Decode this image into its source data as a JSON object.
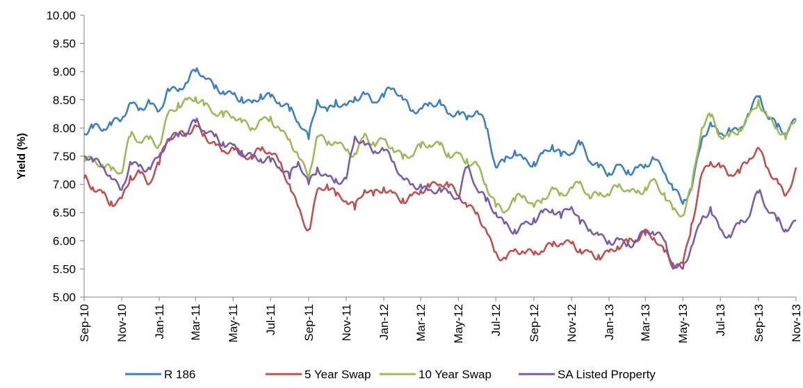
{
  "chart_data": {
    "type": "line",
    "title": "",
    "xlabel": "",
    "ylabel": "Yield (%)",
    "ylim": [
      5.0,
      10.0
    ],
    "yticks": [
      "5.00",
      "5.50",
      "6.00",
      "6.50",
      "7.00",
      "7.50",
      "8.00",
      "8.50",
      "9.00",
      "9.50",
      "10.00"
    ],
    "xticks": [
      "Sep-10",
      "Nov-10",
      "Jan-11",
      "Mar-11",
      "May-11",
      "Jul-11",
      "Sep-11",
      "Nov-11",
      "Jan-12",
      "Mar-12",
      "May-12",
      "Jul-12",
      "Sep-12",
      "Nov-12",
      "Jan-13",
      "Mar-13",
      "May-13",
      "Jul-13",
      "Sep-13",
      "Nov-13"
    ],
    "grid": false,
    "legend_position": "bottom",
    "series": [
      {
        "name": "R 186",
        "color": "#3E7FC1",
        "x": [
          "2010-09-01",
          "2010-09-15",
          "2010-10-01",
          "2010-10-15",
          "2010-11-01",
          "2010-11-15",
          "2010-12-01",
          "2010-12-15",
          "2011-01-01",
          "2011-01-15",
          "2011-02-01",
          "2011-02-15",
          "2011-03-01",
          "2011-03-15",
          "2011-04-01",
          "2011-04-15",
          "2011-05-01",
          "2011-05-15",
          "2011-06-01",
          "2011-06-15",
          "2011-07-01",
          "2011-07-15",
          "2011-08-01",
          "2011-08-15",
          "2011-09-01",
          "2011-09-15",
          "2011-10-01",
          "2011-10-15",
          "2011-11-01",
          "2011-11-15",
          "2011-12-01",
          "2011-12-15",
          "2012-01-01",
          "2012-01-15",
          "2012-02-01",
          "2012-02-15",
          "2012-03-01",
          "2012-03-15",
          "2012-04-01",
          "2012-04-15",
          "2012-05-01",
          "2012-05-15",
          "2012-06-01",
          "2012-06-15",
          "2012-07-01",
          "2012-07-15",
          "2012-08-01",
          "2012-08-15",
          "2012-09-01",
          "2012-09-15",
          "2012-10-01",
          "2012-10-15",
          "2012-11-01",
          "2012-11-15",
          "2012-12-01",
          "2012-12-15",
          "2013-01-01",
          "2013-01-15",
          "2013-02-01",
          "2013-02-15",
          "2013-03-01",
          "2013-03-15",
          "2013-04-01",
          "2013-04-15",
          "2013-05-01",
          "2013-05-15",
          "2013-06-01",
          "2013-06-15",
          "2013-07-01",
          "2013-07-15",
          "2013-08-01",
          "2013-08-15",
          "2013-09-01",
          "2013-09-15",
          "2013-10-01",
          "2013-10-15",
          "2013-11-01"
        ],
        "values": [
          7.9,
          8.0,
          7.95,
          8.05,
          8.15,
          8.45,
          8.35,
          8.5,
          8.3,
          8.7,
          8.65,
          8.8,
          9.0,
          8.9,
          8.7,
          8.65,
          8.6,
          8.55,
          8.45,
          8.6,
          8.55,
          8.45,
          8.3,
          8.1,
          7.8,
          8.5,
          8.3,
          8.5,
          8.4,
          8.55,
          8.6,
          8.45,
          8.55,
          8.7,
          8.5,
          8.3,
          8.35,
          8.45,
          8.5,
          8.25,
          8.3,
          8.15,
          8.3,
          8.0,
          7.3,
          7.4,
          7.6,
          7.45,
          7.4,
          7.55,
          7.7,
          7.5,
          7.55,
          7.7,
          7.4,
          7.3,
          7.2,
          7.35,
          7.25,
          7.3,
          7.35,
          7.45,
          7.2,
          6.9,
          6.65,
          6.9,
          7.8,
          8.1,
          7.9,
          8.0,
          7.95,
          8.25,
          8.55,
          8.2,
          8.0,
          7.9,
          8.15
        ]
      },
      {
        "name": "5 Year Swap",
        "color": "#C0504D",
        "x": [
          "2010-09-01",
          "2010-09-15",
          "2010-10-01",
          "2010-10-15",
          "2010-11-01",
          "2010-11-15",
          "2010-12-01",
          "2010-12-15",
          "2011-01-01",
          "2011-01-15",
          "2011-02-01",
          "2011-02-15",
          "2011-03-01",
          "2011-03-15",
          "2011-04-01",
          "2011-04-15",
          "2011-05-01",
          "2011-05-15",
          "2011-06-01",
          "2011-06-15",
          "2011-07-01",
          "2011-07-15",
          "2011-08-01",
          "2011-08-15",
          "2011-09-01",
          "2011-09-15",
          "2011-10-01",
          "2011-10-15",
          "2011-11-01",
          "2011-11-15",
          "2011-12-01",
          "2011-12-15",
          "2012-01-01",
          "2012-01-15",
          "2012-02-01",
          "2012-02-15",
          "2012-03-01",
          "2012-03-15",
          "2012-04-01",
          "2012-04-15",
          "2012-05-01",
          "2012-05-15",
          "2012-06-01",
          "2012-06-15",
          "2012-07-01",
          "2012-07-15",
          "2012-08-01",
          "2012-08-15",
          "2012-09-01",
          "2012-09-15",
          "2012-10-01",
          "2012-10-15",
          "2012-11-01",
          "2012-11-15",
          "2012-12-01",
          "2012-12-15",
          "2013-01-01",
          "2013-01-15",
          "2013-02-01",
          "2013-02-15",
          "2013-03-01",
          "2013-03-15",
          "2013-04-01",
          "2013-04-15",
          "2013-05-01",
          "2013-05-15",
          "2013-06-01",
          "2013-06-15",
          "2013-07-01",
          "2013-07-15",
          "2013-08-01",
          "2013-08-15",
          "2013-09-01",
          "2013-09-15",
          "2013-10-01",
          "2013-10-15",
          "2013-11-01"
        ],
        "values": [
          7.1,
          6.95,
          6.85,
          6.7,
          6.75,
          7.15,
          7.2,
          7.0,
          7.35,
          7.8,
          7.85,
          7.9,
          8.05,
          7.9,
          7.75,
          7.6,
          7.65,
          7.5,
          7.45,
          7.6,
          7.55,
          7.4,
          7.0,
          6.6,
          6.2,
          6.9,
          7.0,
          6.8,
          6.7,
          6.55,
          6.9,
          6.8,
          6.95,
          6.85,
          6.75,
          6.8,
          6.9,
          6.95,
          7.0,
          6.95,
          6.8,
          6.6,
          6.5,
          6.2,
          5.8,
          5.7,
          5.85,
          5.8,
          5.75,
          5.8,
          5.9,
          5.95,
          5.95,
          5.85,
          5.8,
          5.75,
          5.8,
          5.9,
          5.95,
          6.0,
          6.1,
          6.05,
          5.8,
          5.6,
          5.6,
          6.3,
          7.2,
          7.4,
          7.3,
          7.15,
          7.2,
          7.4,
          7.65,
          7.3,
          7.1,
          6.8,
          7.3
        ]
      },
      {
        "name": "10 Year Swap",
        "color": "#9BBB59",
        "x": [
          "2010-09-01",
          "2010-09-15",
          "2010-10-01",
          "2010-10-15",
          "2010-11-01",
          "2010-11-15",
          "2010-12-01",
          "2010-12-15",
          "2011-01-01",
          "2011-01-15",
          "2011-02-01",
          "2011-02-15",
          "2011-03-01",
          "2011-03-15",
          "2011-04-01",
          "2011-04-15",
          "2011-05-01",
          "2011-05-15",
          "2011-06-01",
          "2011-06-15",
          "2011-07-01",
          "2011-07-15",
          "2011-08-01",
          "2011-08-15",
          "2011-09-01",
          "2011-09-15",
          "2011-10-01",
          "2011-10-15",
          "2011-11-01",
          "2011-11-15",
          "2011-12-01",
          "2011-12-15",
          "2012-01-01",
          "2012-01-15",
          "2012-02-01",
          "2012-02-15",
          "2012-03-01",
          "2012-03-15",
          "2012-04-01",
          "2012-04-15",
          "2012-05-01",
          "2012-05-15",
          "2012-06-01",
          "2012-06-15",
          "2012-07-01",
          "2012-07-15",
          "2012-08-01",
          "2012-08-15",
          "2012-09-01",
          "2012-09-15",
          "2012-10-01",
          "2012-10-15",
          "2012-11-01",
          "2012-11-15",
          "2012-12-01",
          "2012-12-15",
          "2013-01-01",
          "2013-01-15",
          "2013-02-01",
          "2013-02-15",
          "2013-03-01",
          "2013-03-15",
          "2013-04-01",
          "2013-04-15",
          "2013-05-01",
          "2013-05-15",
          "2013-06-01",
          "2013-06-15",
          "2013-07-01",
          "2013-07-15",
          "2013-08-01",
          "2013-08-15",
          "2013-09-01",
          "2013-09-15",
          "2013-10-01",
          "2013-10-15",
          "2013-11-01"
        ],
        "values": [
          7.5,
          7.45,
          7.35,
          7.25,
          7.2,
          7.85,
          7.75,
          7.8,
          7.7,
          8.25,
          8.45,
          8.5,
          8.55,
          8.4,
          8.25,
          8.2,
          8.2,
          8.1,
          8.0,
          8.15,
          8.2,
          8.0,
          7.8,
          7.5,
          7.1,
          7.85,
          7.7,
          7.75,
          7.6,
          7.55,
          7.9,
          7.75,
          7.8,
          7.65,
          7.45,
          7.5,
          7.65,
          7.7,
          7.7,
          7.55,
          7.55,
          7.45,
          7.35,
          7.0,
          6.6,
          6.5,
          6.7,
          6.8,
          6.6,
          6.75,
          6.95,
          6.85,
          6.95,
          7.05,
          6.75,
          6.8,
          6.8,
          6.95,
          6.9,
          6.85,
          6.95,
          7.1,
          6.85,
          6.55,
          6.45,
          6.9,
          8.0,
          8.2,
          7.85,
          7.85,
          8.0,
          8.2,
          8.5,
          8.2,
          8.0,
          7.8,
          8.15
        ]
      },
      {
        "name": "SA Listed Property",
        "color": "#7A5CA8",
        "x": [
          "2010-09-01",
          "2010-09-15",
          "2010-10-01",
          "2010-10-15",
          "2010-11-01",
          "2010-11-15",
          "2010-12-01",
          "2010-12-15",
          "2011-01-01",
          "2011-01-15",
          "2011-02-01",
          "2011-02-15",
          "2011-03-01",
          "2011-03-15",
          "2011-04-01",
          "2011-04-15",
          "2011-05-01",
          "2011-05-15",
          "2011-06-01",
          "2011-06-15",
          "2011-07-01",
          "2011-07-15",
          "2011-08-01",
          "2011-08-15",
          "2011-09-01",
          "2011-09-15",
          "2011-10-01",
          "2011-10-15",
          "2011-11-01",
          "2011-11-15",
          "2011-12-01",
          "2011-12-15",
          "2012-01-01",
          "2012-01-15",
          "2012-02-01",
          "2012-02-15",
          "2012-03-01",
          "2012-03-15",
          "2012-04-01",
          "2012-04-15",
          "2012-05-01",
          "2012-05-15",
          "2012-06-01",
          "2012-06-15",
          "2012-07-01",
          "2012-07-15",
          "2012-08-01",
          "2012-08-15",
          "2012-09-01",
          "2012-09-15",
          "2012-10-01",
          "2012-10-15",
          "2012-11-01",
          "2012-11-15",
          "2012-12-01",
          "2012-12-15",
          "2013-01-01",
          "2013-01-15",
          "2013-02-01",
          "2013-02-15",
          "2013-03-01",
          "2013-03-15",
          "2013-04-01",
          "2013-04-15",
          "2013-05-01",
          "2013-05-15",
          "2013-06-01",
          "2013-06-15",
          "2013-07-01",
          "2013-07-15",
          "2013-08-01",
          "2013-08-15",
          "2013-09-01",
          "2013-09-15",
          "2013-10-01",
          "2013-10-15",
          "2013-11-01"
        ],
        "values": [
          7.5,
          7.4,
          7.3,
          7.1,
          6.9,
          7.4,
          7.35,
          7.3,
          7.5,
          7.8,
          7.85,
          7.9,
          8.1,
          7.95,
          7.85,
          7.75,
          7.7,
          7.6,
          7.5,
          7.45,
          7.4,
          7.3,
          7.1,
          7.4,
          7.0,
          7.3,
          7.15,
          7.1,
          7.1,
          7.85,
          7.7,
          7.55,
          7.6,
          7.4,
          7.1,
          7.0,
          7.0,
          6.9,
          6.95,
          6.85,
          6.75,
          7.3,
          6.9,
          6.7,
          6.5,
          6.3,
          6.2,
          6.3,
          6.4,
          6.5,
          6.55,
          6.4,
          6.6,
          6.3,
          6.2,
          6.1,
          6.0,
          6.05,
          5.95,
          6.0,
          6.2,
          6.1,
          6.0,
          5.5,
          5.5,
          5.9,
          6.4,
          6.6,
          6.2,
          6.1,
          6.3,
          6.4,
          6.85,
          6.55,
          6.35,
          6.2,
          6.35
        ]
      }
    ]
  }
}
